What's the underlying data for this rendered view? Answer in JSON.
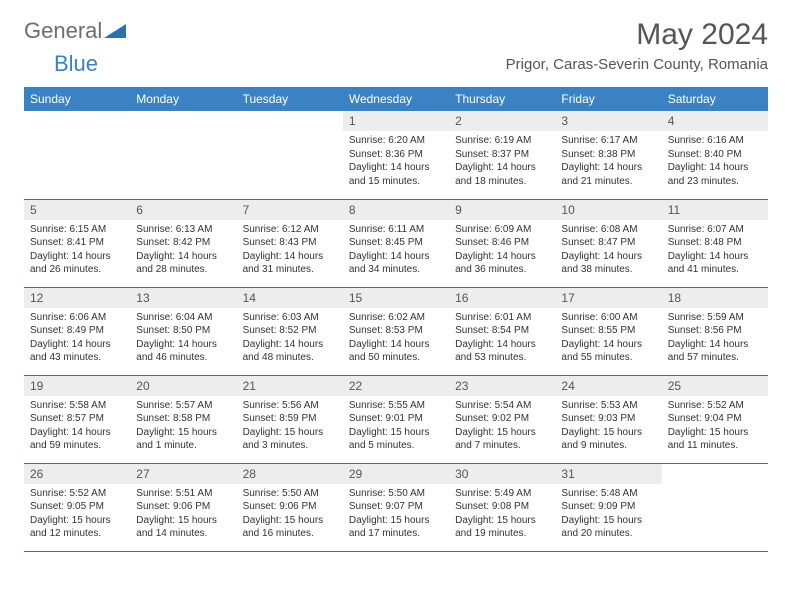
{
  "logo": {
    "general": "General",
    "blue": "Blue"
  },
  "title": "May 2024",
  "location": "Prigor, Caras-Severin County, Romania",
  "weekdays": [
    "Sunday",
    "Monday",
    "Tuesday",
    "Wednesday",
    "Thursday",
    "Friday",
    "Saturday"
  ],
  "colors": {
    "header_bg": "#3b82c4",
    "header_text": "#ffffff",
    "daynum_bg": "#ededed",
    "text": "#555555",
    "rule": "#3b6fa0"
  },
  "weeks": [
    [
      {
        "empty": true
      },
      {
        "empty": true
      },
      {
        "empty": true
      },
      {
        "num": "1",
        "sunrise": "6:20 AM",
        "sunset": "8:36 PM",
        "daylight": "14 hours and 15 minutes."
      },
      {
        "num": "2",
        "sunrise": "6:19 AM",
        "sunset": "8:37 PM",
        "daylight": "14 hours and 18 minutes."
      },
      {
        "num": "3",
        "sunrise": "6:17 AM",
        "sunset": "8:38 PM",
        "daylight": "14 hours and 21 minutes."
      },
      {
        "num": "4",
        "sunrise": "6:16 AM",
        "sunset": "8:40 PM",
        "daylight": "14 hours and 23 minutes."
      }
    ],
    [
      {
        "num": "5",
        "sunrise": "6:15 AM",
        "sunset": "8:41 PM",
        "daylight": "14 hours and 26 minutes."
      },
      {
        "num": "6",
        "sunrise": "6:13 AM",
        "sunset": "8:42 PM",
        "daylight": "14 hours and 28 minutes."
      },
      {
        "num": "7",
        "sunrise": "6:12 AM",
        "sunset": "8:43 PM",
        "daylight": "14 hours and 31 minutes."
      },
      {
        "num": "8",
        "sunrise": "6:11 AM",
        "sunset": "8:45 PM",
        "daylight": "14 hours and 34 minutes."
      },
      {
        "num": "9",
        "sunrise": "6:09 AM",
        "sunset": "8:46 PM",
        "daylight": "14 hours and 36 minutes."
      },
      {
        "num": "10",
        "sunrise": "6:08 AM",
        "sunset": "8:47 PM",
        "daylight": "14 hours and 38 minutes."
      },
      {
        "num": "11",
        "sunrise": "6:07 AM",
        "sunset": "8:48 PM",
        "daylight": "14 hours and 41 minutes."
      }
    ],
    [
      {
        "num": "12",
        "sunrise": "6:06 AM",
        "sunset": "8:49 PM",
        "daylight": "14 hours and 43 minutes."
      },
      {
        "num": "13",
        "sunrise": "6:04 AM",
        "sunset": "8:50 PM",
        "daylight": "14 hours and 46 minutes."
      },
      {
        "num": "14",
        "sunrise": "6:03 AM",
        "sunset": "8:52 PM",
        "daylight": "14 hours and 48 minutes."
      },
      {
        "num": "15",
        "sunrise": "6:02 AM",
        "sunset": "8:53 PM",
        "daylight": "14 hours and 50 minutes."
      },
      {
        "num": "16",
        "sunrise": "6:01 AM",
        "sunset": "8:54 PM",
        "daylight": "14 hours and 53 minutes."
      },
      {
        "num": "17",
        "sunrise": "6:00 AM",
        "sunset": "8:55 PM",
        "daylight": "14 hours and 55 minutes."
      },
      {
        "num": "18",
        "sunrise": "5:59 AM",
        "sunset": "8:56 PM",
        "daylight": "14 hours and 57 minutes."
      }
    ],
    [
      {
        "num": "19",
        "sunrise": "5:58 AM",
        "sunset": "8:57 PM",
        "daylight": "14 hours and 59 minutes."
      },
      {
        "num": "20",
        "sunrise": "5:57 AM",
        "sunset": "8:58 PM",
        "daylight": "15 hours and 1 minute."
      },
      {
        "num": "21",
        "sunrise": "5:56 AM",
        "sunset": "8:59 PM",
        "daylight": "15 hours and 3 minutes."
      },
      {
        "num": "22",
        "sunrise": "5:55 AM",
        "sunset": "9:01 PM",
        "daylight": "15 hours and 5 minutes."
      },
      {
        "num": "23",
        "sunrise": "5:54 AM",
        "sunset": "9:02 PM",
        "daylight": "15 hours and 7 minutes."
      },
      {
        "num": "24",
        "sunrise": "5:53 AM",
        "sunset": "9:03 PM",
        "daylight": "15 hours and 9 minutes."
      },
      {
        "num": "25",
        "sunrise": "5:52 AM",
        "sunset": "9:04 PM",
        "daylight": "15 hours and 11 minutes."
      }
    ],
    [
      {
        "num": "26",
        "sunrise": "5:52 AM",
        "sunset": "9:05 PM",
        "daylight": "15 hours and 12 minutes."
      },
      {
        "num": "27",
        "sunrise": "5:51 AM",
        "sunset": "9:06 PM",
        "daylight": "15 hours and 14 minutes."
      },
      {
        "num": "28",
        "sunrise": "5:50 AM",
        "sunset": "9:06 PM",
        "daylight": "15 hours and 16 minutes."
      },
      {
        "num": "29",
        "sunrise": "5:50 AM",
        "sunset": "9:07 PM",
        "daylight": "15 hours and 17 minutes."
      },
      {
        "num": "30",
        "sunrise": "5:49 AM",
        "sunset": "9:08 PM",
        "daylight": "15 hours and 19 minutes."
      },
      {
        "num": "31",
        "sunrise": "5:48 AM",
        "sunset": "9:09 PM",
        "daylight": "15 hours and 20 minutes."
      },
      {
        "empty": true
      }
    ]
  ],
  "labels": {
    "sunrise": "Sunrise:",
    "sunset": "Sunset:",
    "daylight": "Daylight:"
  }
}
